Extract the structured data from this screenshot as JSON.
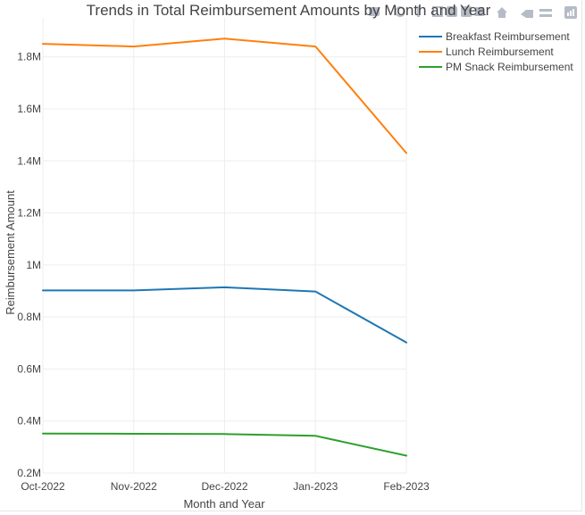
{
  "chart_data": {
    "type": "line",
    "title": "Trends in Total Reimbursement Amounts by Month and Year",
    "xlabel": "Month and Year",
    "ylabel": "Reimbursement Amount",
    "categories": [
      "Oct-2022",
      "Nov-2022",
      "Dec-2022",
      "Jan-2023",
      "Feb-2023"
    ],
    "ylim": [
      200000,
      1950000
    ],
    "yticks": [
      200000,
      400000,
      600000,
      800000,
      1000000,
      1200000,
      1400000,
      1600000,
      1800000
    ],
    "ytick_labels": [
      "0.2M",
      "0.4M",
      "0.6M",
      "0.8M",
      "1M",
      "1.2M",
      "1.4M",
      "1.6M",
      "1.8M"
    ],
    "grid": true,
    "legend_position": "top-right",
    "series": [
      {
        "name": "Breakfast Reimbursement",
        "color": "#1f77b4",
        "values": [
          902000,
          902000,
          914000,
          898000,
          702000
        ]
      },
      {
        "name": "Lunch Reimbursement",
        "color": "#ff7f0e",
        "values": [
          1850000,
          1840000,
          1870000,
          1840000,
          1430000
        ]
      },
      {
        "name": "PM Snack Reimbursement",
        "color": "#2ca02c",
        "values": [
          352000,
          351000,
          350000,
          343000,
          267000
        ]
      }
    ]
  },
  "modebar": {
    "icons": [
      "camera-icon",
      "zoom-icon",
      "pan-icon",
      "box-select-icon",
      "lasso-icon",
      "zoom-in-icon",
      "zoom-out-icon",
      "autoscale-icon",
      "reset-axes-icon",
      "spike-lines-icon",
      "compare-hover-icon",
      "plotly-logo-icon"
    ]
  }
}
